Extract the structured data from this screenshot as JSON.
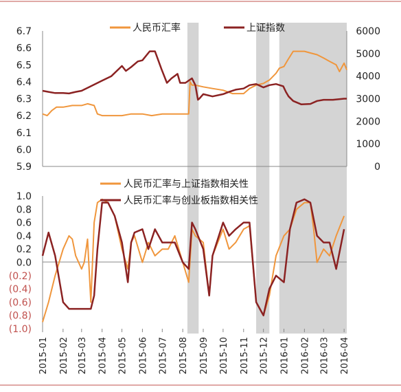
{
  "colors": {
    "rmb": "#f0963c",
    "shanghai": "#8b2222",
    "corr_sh": "#f0963c",
    "corr_chinext": "#8b2222",
    "shade": "#d4d4d4",
    "negative_tick": "#c0504d",
    "frame": "#c0504d"
  },
  "chart_data": [
    {
      "type": "line",
      "legend": [
        "人民币汇率",
        "上证指数"
      ],
      "legend_position": "top",
      "y_left": {
        "ticks": [
          "6.7",
          "6.6",
          "6.5",
          "6.4",
          "6.3",
          "6.2",
          "6.1",
          "6.0",
          "5.9"
        ],
        "range": [
          5.9,
          6.7
        ]
      },
      "y_right": {
        "ticks": [
          "6000",
          "5000",
          "4000",
          "3000",
          "2000",
          "1000",
          "0"
        ],
        "range": [
          0,
          6000
        ]
      },
      "shaded_periods": [
        [
          "2015-08-08",
          "2015-08-25"
        ],
        [
          "2015-11-20",
          "2015-12-10"
        ],
        [
          "2015-12-25",
          "2016-04-05"
        ]
      ],
      "series": [
        {
          "name": "人民币汇率",
          "axis": "left",
          "x": [
            "2015-01-01",
            "2015-01-08",
            "2015-01-15",
            "2015-01-22",
            "2015-02-01",
            "2015-02-15",
            "2015-03-01",
            "2015-03-10",
            "2015-03-20",
            "2015-03-25",
            "2015-04-01",
            "2015-04-15",
            "2015-05-01",
            "2015-05-15",
            "2015-06-01",
            "2015-06-15",
            "2015-07-01",
            "2015-07-15",
            "2015-08-01",
            "2015-08-10",
            "2015-08-12",
            "2015-08-15",
            "2015-08-20",
            "2015-09-01",
            "2015-09-15",
            "2015-10-01",
            "2015-10-15",
            "2015-11-01",
            "2015-11-10",
            "2015-11-20",
            "2015-12-01",
            "2015-12-10",
            "2015-12-20",
            "2015-12-25",
            "2016-01-01",
            "2016-01-07",
            "2016-01-15",
            "2016-02-01",
            "2016-02-10",
            "2016-02-20",
            "2016-03-01",
            "2016-03-10",
            "2016-03-20",
            "2016-03-25",
            "2016-04-01",
            "2016-04-05"
          ],
          "values": [
            6.21,
            6.2,
            6.23,
            6.25,
            6.25,
            6.26,
            6.26,
            6.27,
            6.26,
            6.21,
            6.2,
            6.2,
            6.2,
            6.21,
            6.21,
            6.2,
            6.21,
            6.21,
            6.21,
            6.21,
            6.4,
            6.38,
            6.38,
            6.37,
            6.36,
            6.35,
            6.33,
            6.33,
            6.36,
            6.38,
            6.39,
            6.41,
            6.45,
            6.48,
            6.49,
            6.53,
            6.58,
            6.58,
            6.57,
            6.56,
            6.54,
            6.52,
            6.5,
            6.46,
            6.51,
            6.47
          ]
        },
        {
          "name": "上证指数",
          "axis": "right",
          "x": [
            "2015-01-01",
            "2015-01-10",
            "2015-01-20",
            "2015-02-01",
            "2015-02-10",
            "2015-02-20",
            "2015-03-01",
            "2015-03-15",
            "2015-04-01",
            "2015-04-15",
            "2015-05-01",
            "2015-05-07",
            "2015-05-15",
            "2015-05-25",
            "2015-06-01",
            "2015-06-12",
            "2015-06-20",
            "2015-06-30",
            "2015-07-08",
            "2015-07-15",
            "2015-07-24",
            "2015-07-28",
            "2015-08-05",
            "2015-08-15",
            "2015-08-20",
            "2015-08-24",
            "2015-08-26",
            "2015-09-01",
            "2015-09-15",
            "2015-10-01",
            "2015-10-10",
            "2015-10-20",
            "2015-11-01",
            "2015-11-10",
            "2015-11-20",
            "2015-12-01",
            "2015-12-10",
            "2015-12-20",
            "2015-12-31",
            "2016-01-04",
            "2016-01-08",
            "2016-01-15",
            "2016-01-27",
            "2016-02-10",
            "2016-02-20",
            "2016-03-01",
            "2016-03-15",
            "2016-04-01",
            "2016-04-05"
          ],
          "values": [
            3350,
            3300,
            3250,
            3250,
            3230,
            3300,
            3350,
            3550,
            3800,
            4000,
            4450,
            4230,
            4400,
            4650,
            4700,
            5100,
            5100,
            4300,
            3700,
            3900,
            4100,
            3700,
            3700,
            3900,
            3600,
            2950,
            3000,
            3200,
            3100,
            3200,
            3300,
            3400,
            3450,
            3600,
            3650,
            3500,
            3600,
            3650,
            3550,
            3300,
            3100,
            2900,
            2750,
            2770,
            2900,
            2950,
            2950,
            3000,
            3000
          ]
        }
      ]
    },
    {
      "type": "line",
      "legend": [
        "人民币汇率与上证指数相关性",
        "人民币汇率与创业板指数相关性"
      ],
      "legend_position": "top",
      "y": {
        "ticks": [
          "1.0",
          "0.8",
          "0.6",
          "0.4",
          "0.2",
          "0.0",
          "(0.2)",
          "(0.4)",
          "(0.6)",
          "(0.8)",
          "(1.0)"
        ],
        "range": [
          -1.0,
          1.0
        ]
      },
      "x_ticks": [
        "2015-01",
        "2015-02",
        "2015-03",
        "2015-04",
        "2015-05",
        "2015-06",
        "2015-07",
        "2015-08",
        "2015-09",
        "2015-10",
        "2015-11",
        "2015-12",
        "2016-01",
        "2016-02",
        "2016-03",
        "2016-04"
      ],
      "shaded_periods": [
        [
          "2015-08-08",
          "2015-08-25"
        ],
        [
          "2015-11-20",
          "2015-12-10"
        ],
        [
          "2015-12-25",
          "2016-04-05"
        ]
      ],
      "series": [
        {
          "name": "人民币汇率与上证指数相关性",
          "x": [
            "2015-01-01",
            "2015-01-10",
            "2015-01-20",
            "2015-02-01",
            "2015-02-10",
            "2015-02-15",
            "2015-02-20",
            "2015-03-01",
            "2015-03-05",
            "2015-03-10",
            "2015-03-15",
            "2015-03-20",
            "2015-03-25",
            "2015-04-01",
            "2015-04-10",
            "2015-04-20",
            "2015-05-01",
            "2015-05-10",
            "2015-05-15",
            "2015-05-20",
            "2015-06-01",
            "2015-06-10",
            "2015-06-20",
            "2015-07-01",
            "2015-07-10",
            "2015-07-20",
            "2015-08-01",
            "2015-08-10",
            "2015-08-15",
            "2015-08-20",
            "2015-09-01",
            "2015-09-10",
            "2015-09-15",
            "2015-10-01",
            "2015-10-10",
            "2015-10-20",
            "2015-11-01",
            "2015-11-10",
            "2015-11-20",
            "2015-12-01",
            "2015-12-10",
            "2015-12-20",
            "2016-01-01",
            "2016-01-10",
            "2016-01-20",
            "2016-02-01",
            "2016-02-10",
            "2016-02-15",
            "2016-02-20",
            "2016-03-01",
            "2016-03-10",
            "2016-03-20",
            "2016-04-01"
          ],
          "values": [
            -0.9,
            -0.6,
            -0.2,
            0.2,
            0.4,
            0.35,
            0.1,
            -0.1,
            0.0,
            0.35,
            -0.6,
            0.6,
            0.9,
            0.95,
            0.9,
            0.7,
            0.2,
            -0.1,
            0.3,
            0.4,
            0.0,
            0.3,
            0.1,
            0.2,
            0.2,
            0.4,
            0.0,
            -0.3,
            0.5,
            0.4,
            0.3,
            -0.5,
            0.1,
            0.5,
            0.2,
            0.3,
            0.5,
            0.55,
            -0.6,
            -0.8,
            -0.5,
            0.1,
            0.4,
            0.5,
            0.8,
            0.9,
            0.9,
            0.5,
            0.0,
            0.2,
            0.1,
            0.4,
            0.7
          ]
        },
        {
          "name": "人民币汇率与创业板指数相关性",
          "x": [
            "2015-01-01",
            "2015-01-10",
            "2015-01-20",
            "2015-02-01",
            "2015-02-10",
            "2015-02-20",
            "2015-03-01",
            "2015-03-10",
            "2015-03-15",
            "2015-03-20",
            "2015-03-25",
            "2015-04-01",
            "2015-04-10",
            "2015-04-20",
            "2015-05-01",
            "2015-05-10",
            "2015-05-15",
            "2015-05-20",
            "2015-06-01",
            "2015-06-10",
            "2015-06-20",
            "2015-07-01",
            "2015-07-10",
            "2015-07-20",
            "2015-08-01",
            "2015-08-10",
            "2015-08-15",
            "2015-08-20",
            "2015-09-01",
            "2015-09-10",
            "2015-09-15",
            "2015-10-01",
            "2015-10-10",
            "2015-10-20",
            "2015-11-01",
            "2015-11-10",
            "2015-11-20",
            "2015-12-01",
            "2015-12-10",
            "2015-12-20",
            "2016-01-01",
            "2016-01-10",
            "2016-01-20",
            "2016-02-01",
            "2016-02-10",
            "2016-02-20",
            "2016-03-01",
            "2016-03-10",
            "2016-03-20",
            "2016-04-01"
          ],
          "values": [
            0.1,
            0.45,
            0.1,
            -0.6,
            -0.7,
            -0.7,
            -0.7,
            -0.7,
            -0.7,
            -0.5,
            0.2,
            0.9,
            0.9,
            0.7,
            0.3,
            -0.3,
            0.3,
            0.45,
            0.5,
            0.2,
            0.5,
            0.3,
            0.3,
            0.3,
            0.0,
            -0.1,
            0.6,
            0.5,
            0.2,
            -0.5,
            0.1,
            0.6,
            0.4,
            0.5,
            0.6,
            0.6,
            -0.6,
            -0.8,
            -0.4,
            -0.2,
            -0.3,
            0.5,
            0.9,
            0.95,
            0.9,
            0.4,
            0.3,
            0.3,
            -0.1,
            0.5
          ]
        }
      ]
    }
  ]
}
